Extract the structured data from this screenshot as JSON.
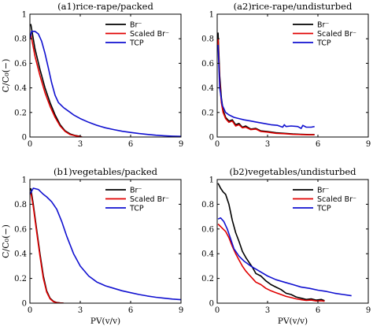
{
  "figure": {
    "ylabel": "C/C₀(−)",
    "xlabel": "PV(v/v)"
  },
  "chart_data": [
    {
      "id": "a1",
      "type": "line",
      "title": "(a1)rice-rape/packed",
      "xlabel": "",
      "ylabel": "C/C₀(−)",
      "xlim": [
        0,
        9
      ],
      "ylim": [
        0,
        1
      ],
      "xticks": [
        "0",
        "3",
        "6",
        "9"
      ],
      "yticks": [
        "0",
        "0.2",
        "0.4",
        "0.6",
        "0.8",
        "1"
      ],
      "legend_position": "top-right",
      "series": [
        {
          "name": "Br⁻",
          "color": "#000000",
          "x": [
            0.05,
            0.3,
            0.6,
            0.9,
            1.2,
            1.5,
            1.8,
            2.1,
            2.4,
            2.7,
            3.0,
            3.1
          ],
          "y": [
            0.92,
            0.72,
            0.55,
            0.4,
            0.28,
            0.18,
            0.1,
            0.05,
            0.025,
            0.012,
            0.005,
            0.0
          ]
        },
        {
          "name": "Scaled Br⁻",
          "color": "#e00000",
          "x": [
            0.05,
            0.3,
            0.6,
            0.9,
            1.2,
            1.5,
            1.8,
            2.1,
            2.4,
            2.7,
            3.0,
            3.1
          ],
          "y": [
            0.84,
            0.66,
            0.5,
            0.36,
            0.25,
            0.16,
            0.09,
            0.045,
            0.02,
            0.01,
            0.004,
            0.0
          ]
        },
        {
          "name": "TCP",
          "color": "#1010d0",
          "x": [
            0,
            0.1,
            0.3,
            0.5,
            0.7,
            0.9,
            1.1,
            1.3,
            1.5,
            1.7,
            2.0,
            2.3,
            2.6,
            3.0,
            3.5,
            4.0,
            4.5,
            5.0,
            5.5,
            6.0,
            6.5,
            7.0,
            7.5,
            8.0,
            8.5,
            9.0
          ],
          "y": [
            0.8,
            0.86,
            0.86,
            0.84,
            0.78,
            0.68,
            0.56,
            0.44,
            0.34,
            0.28,
            0.24,
            0.21,
            0.18,
            0.15,
            0.12,
            0.095,
            0.075,
            0.06,
            0.047,
            0.037,
            0.028,
            0.021,
            0.015,
            0.01,
            0.007,
            0.005
          ]
        }
      ]
    },
    {
      "id": "a2",
      "type": "line",
      "title": "(a2)rice-rape/undisturbed",
      "xlabel": "",
      "ylabel": "",
      "xlim": [
        0,
        9
      ],
      "ylim": [
        0,
        1
      ],
      "xticks": [
        "0",
        "3",
        "6",
        "9"
      ],
      "yticks": [
        "0",
        "0.2",
        "0.4",
        "0.6",
        "0.8",
        "1"
      ],
      "legend_position": "top-right",
      "series": [
        {
          "name": "Br⁻",
          "color": "#000000",
          "x": [
            0.05,
            0.15,
            0.25,
            0.35,
            0.5,
            0.7,
            0.9,
            1.1,
            1.3,
            1.5,
            1.7,
            2.0,
            2.3,
            2.6,
            3.0,
            3.5,
            4.0,
            4.5,
            5.0,
            5.5,
            5.8
          ],
          "y": [
            0.85,
            0.5,
            0.32,
            0.22,
            0.16,
            0.13,
            0.14,
            0.1,
            0.11,
            0.08,
            0.09,
            0.065,
            0.07,
            0.05,
            0.045,
            0.035,
            0.03,
            0.025,
            0.022,
            0.02,
            0.02
          ]
        },
        {
          "name": "Scaled Br⁻",
          "color": "#e00000",
          "x": [
            0.05,
            0.15,
            0.25,
            0.35,
            0.5,
            0.7,
            0.9,
            1.1,
            1.3,
            1.5,
            1.7,
            2.0,
            2.3,
            2.6,
            3.0,
            3.5,
            4.0,
            4.5,
            5.0,
            5.5,
            5.8
          ],
          "y": [
            0.8,
            0.45,
            0.28,
            0.2,
            0.15,
            0.12,
            0.13,
            0.09,
            0.1,
            0.075,
            0.08,
            0.06,
            0.065,
            0.045,
            0.04,
            0.03,
            0.027,
            0.022,
            0.02,
            0.018,
            0.018
          ]
        },
        {
          "name": "TCP",
          "color": "#1010d0",
          "x": [
            0.05,
            0.15,
            0.3,
            0.5,
            0.7,
            1.0,
            1.3,
            1.6,
            2.0,
            2.4,
            2.8,
            3.2,
            3.6,
            3.9,
            4.0,
            4.1,
            4.4,
            4.8,
            5.0,
            5.1,
            5.3,
            5.6,
            5.8
          ],
          "y": [
            0.75,
            0.4,
            0.26,
            0.2,
            0.18,
            0.16,
            0.15,
            0.14,
            0.13,
            0.12,
            0.11,
            0.1,
            0.095,
            0.08,
            0.1,
            0.085,
            0.09,
            0.085,
            0.07,
            0.095,
            0.08,
            0.08,
            0.085
          ]
        }
      ]
    },
    {
      "id": "b1",
      "type": "line",
      "title": "(b1)vegetables/packed",
      "xlabel": "PV(v/v)",
      "ylabel": "C/C₀(−)",
      "xlim": [
        0,
        9
      ],
      "ylim": [
        0,
        1
      ],
      "xticks": [
        "0",
        "3",
        "6",
        "9"
      ],
      "yticks": [
        "0",
        "0.2",
        "0.4",
        "0.6",
        "0.8",
        "1"
      ],
      "legend_position": "top-right",
      "series": [
        {
          "name": "Br⁻",
          "color": "#000000",
          "x": [
            0.05,
            0.2,
            0.4,
            0.6,
            0.8,
            1.0,
            1.2,
            1.4,
            1.6,
            1.8,
            2.0
          ],
          "y": [
            0.93,
            0.8,
            0.6,
            0.4,
            0.22,
            0.1,
            0.04,
            0.015,
            0.005,
            0.002,
            0.0
          ]
        },
        {
          "name": "Scaled Br⁻",
          "color": "#e00000",
          "x": [
            0.05,
            0.2,
            0.4,
            0.6,
            0.8,
            1.0,
            1.2,
            1.4,
            1.6,
            1.8,
            2.0
          ],
          "y": [
            0.9,
            0.78,
            0.58,
            0.38,
            0.2,
            0.09,
            0.035,
            0.012,
            0.004,
            0.001,
            0.0
          ]
        },
        {
          "name": "TCP",
          "color": "#1010d0",
          "x": [
            0,
            0.2,
            0.5,
            0.8,
            1.0,
            1.3,
            1.6,
            1.9,
            2.2,
            2.6,
            3.0,
            3.5,
            4.0,
            4.5,
            5.0,
            5.5,
            6.0,
            6.5,
            7.0,
            7.5,
            8.0,
            8.5,
            9.0
          ],
          "y": [
            0.88,
            0.93,
            0.92,
            0.88,
            0.86,
            0.82,
            0.76,
            0.66,
            0.54,
            0.4,
            0.3,
            0.22,
            0.17,
            0.14,
            0.12,
            0.1,
            0.085,
            0.07,
            0.058,
            0.048,
            0.04,
            0.033,
            0.028
          ]
        }
      ]
    },
    {
      "id": "b2",
      "type": "line",
      "title": "(b2)vegetables/undisturbed",
      "xlabel": "PV(v/v)",
      "ylabel": "",
      "xlim": [
        0,
        9
      ],
      "ylim": [
        0,
        1
      ],
      "xticks": [
        "0",
        "3",
        "6",
        "9"
      ],
      "yticks": [
        "0",
        "0.2",
        "0.4",
        "0.6",
        "0.8",
        "1"
      ],
      "legend_position": "top-right",
      "series": [
        {
          "name": "Br⁻",
          "color": "#000000",
          "x": [
            0.05,
            0.2,
            0.35,
            0.5,
            0.7,
            0.9,
            1.1,
            1.3,
            1.5,
            1.7,
            1.9,
            2.1,
            2.3,
            2.6,
            2.9,
            3.2,
            3.5,
            3.8,
            4.1,
            4.4,
            4.7,
            5.0,
            5.3,
            5.6,
            5.9,
            6.2,
            6.4
          ],
          "y": [
            0.97,
            0.93,
            0.9,
            0.88,
            0.8,
            0.67,
            0.57,
            0.5,
            0.42,
            0.37,
            0.33,
            0.29,
            0.24,
            0.22,
            0.18,
            0.15,
            0.13,
            0.11,
            0.08,
            0.07,
            0.05,
            0.04,
            0.03,
            0.035,
            0.025,
            0.03,
            0.02
          ]
        },
        {
          "name": "Scaled Br⁻",
          "color": "#e00000",
          "x": [
            0.05,
            0.2,
            0.35,
            0.5,
            0.7,
            0.9,
            1.1,
            1.3,
            1.5,
            1.7,
            1.9,
            2.1,
            2.3,
            2.6,
            2.9,
            3.2,
            3.5,
            3.8,
            4.1,
            4.4,
            4.7,
            5.0,
            5.3,
            5.6,
            5.9,
            6.2,
            6.4
          ],
          "y": [
            0.64,
            0.62,
            0.6,
            0.58,
            0.53,
            0.46,
            0.4,
            0.35,
            0.3,
            0.26,
            0.23,
            0.2,
            0.17,
            0.15,
            0.12,
            0.1,
            0.085,
            0.07,
            0.055,
            0.045,
            0.035,
            0.028,
            0.022,
            0.025,
            0.018,
            0.02,
            0.015
          ]
        },
        {
          "name": "TCP",
          "color": "#1010d0",
          "x": [
            0.05,
            0.2,
            0.4,
            0.6,
            0.8,
            1.0,
            1.3,
            1.6,
            2.0,
            2.5,
            3.0,
            3.5,
            4.0,
            4.5,
            5.0,
            5.5,
            6.0,
            6.5,
            7.0,
            7.5,
            8.0
          ],
          "y": [
            0.68,
            0.69,
            0.66,
            0.6,
            0.52,
            0.44,
            0.38,
            0.34,
            0.3,
            0.26,
            0.22,
            0.19,
            0.17,
            0.15,
            0.13,
            0.12,
            0.105,
            0.095,
            0.08,
            0.07,
            0.06
          ]
        }
      ]
    }
  ]
}
